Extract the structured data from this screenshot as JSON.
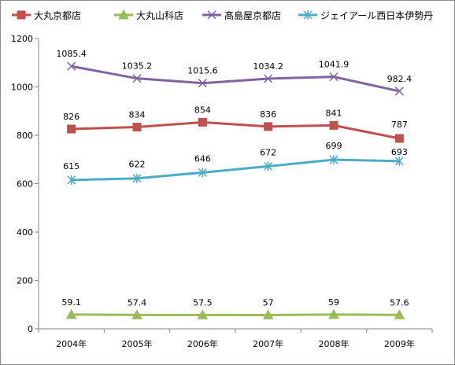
{
  "chart_data": {
    "type": "line",
    "title": "",
    "xlabel": "",
    "ylabel": "",
    "categories": [
      "2004年",
      "2005年",
      "2006年",
      "2007年",
      "2008年",
      "2009年"
    ],
    "ylim": [
      0,
      1200
    ],
    "yticks": [
      "0",
      "200",
      "400",
      "600",
      "800",
      "1000",
      "1200"
    ],
    "grid": false,
    "legend": "top",
    "series": [
      {
        "name": "大丸京都店",
        "values": [
          826,
          834,
          854,
          836,
          841,
          787
        ],
        "labels": [
          "826",
          "834",
          "854",
          "836",
          "841",
          "787"
        ],
        "color": "#c0504d",
        "marker": "square"
      },
      {
        "name": "大丸山科店",
        "values": [
          59.1,
          57.4,
          57.5,
          57,
          59,
          57.6
        ],
        "labels": [
          "59.1",
          "57.4",
          "57.5",
          "57",
          "59",
          "57.6"
        ],
        "color": "#9bbb59",
        "marker": "triangle"
      },
      {
        "name": "髙島屋京都店",
        "values": [
          1085.4,
          1035.2,
          1015.6,
          1034.2,
          1041.9,
          982.4
        ],
        "labels": [
          "1085.4",
          "1035.2",
          "1015.6",
          "1034.2",
          "1041.9",
          "982.4"
        ],
        "color": "#8064a2",
        "marker": "x"
      },
      {
        "name": "ジェイアール西日本伊勢丹",
        "values": [
          615,
          622,
          646,
          672,
          699,
          693
        ],
        "labels": [
          "615",
          "622",
          "646",
          "672",
          "699",
          "693"
        ],
        "color": "#4bacc6",
        "marker": "star"
      }
    ]
  }
}
